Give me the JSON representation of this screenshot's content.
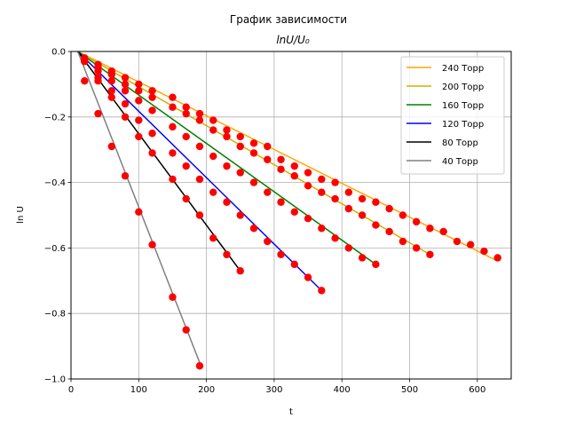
{
  "chart_data": {
    "type": "line",
    "title": "График зависимости",
    "subtitle": "lnU/U₀",
    "xlabel": "t",
    "ylabel": "ln U",
    "xlim": [
      0,
      650
    ],
    "ylim": [
      -1.0,
      0.0
    ],
    "x_ticks": [
      0,
      100,
      200,
      300,
      400,
      500,
      600
    ],
    "y_ticks": [
      0.0,
      -0.2,
      -0.4,
      -0.6,
      -0.8,
      -1.0
    ],
    "x_tick_labels": [
      "0",
      "100",
      "200",
      "300",
      "400",
      "500",
      "600"
    ],
    "y_tick_labels": [
      "0.0",
      "−0.2",
      "−0.4",
      "−0.6",
      "−0.8",
      "−1.0"
    ],
    "grid": true,
    "legend_position": "top-right",
    "marker_color": "#ff0000",
    "series": [
      {
        "name": "240 Торр",
        "color": "#ffa500",
        "fit": [
          [
            10,
            0.0
          ],
          [
            630,
            -0.64
          ]
        ],
        "points": [
          [
            20,
            -0.02
          ],
          [
            40,
            -0.04
          ],
          [
            60,
            -0.06
          ],
          [
            80,
            -0.08
          ],
          [
            100,
            -0.1
          ],
          [
            120,
            -0.12
          ],
          [
            150,
            -0.14
          ],
          [
            170,
            -0.17
          ],
          [
            190,
            -0.19
          ],
          [
            210,
            -0.21
          ],
          [
            230,
            -0.24
          ],
          [
            250,
            -0.26
          ],
          [
            270,
            -0.28
          ],
          [
            290,
            -0.29
          ],
          [
            310,
            -0.33
          ],
          [
            330,
            -0.35
          ],
          [
            350,
            -0.37
          ],
          [
            370,
            -0.39
          ],
          [
            390,
            -0.4
          ],
          [
            410,
            -0.43
          ],
          [
            430,
            -0.45
          ],
          [
            450,
            -0.46
          ],
          [
            470,
            -0.48
          ],
          [
            490,
            -0.5
          ],
          [
            510,
            -0.52
          ],
          [
            530,
            -0.54
          ],
          [
            550,
            -0.55
          ],
          [
            570,
            -0.58
          ],
          [
            590,
            -0.59
          ],
          [
            610,
            -0.61
          ],
          [
            630,
            -0.63
          ]
        ]
      },
      {
        "name": "200 Торр",
        "color": "#d4b000",
        "fit": [
          [
            10,
            0.0
          ],
          [
            530,
            -0.62
          ]
        ],
        "points": [
          [
            20,
            -0.03
          ],
          [
            40,
            -0.05
          ],
          [
            60,
            -0.07
          ],
          [
            80,
            -0.1
          ],
          [
            100,
            -0.12
          ],
          [
            120,
            -0.14
          ],
          [
            150,
            -0.17
          ],
          [
            170,
            -0.19
          ],
          [
            190,
            -0.21
          ],
          [
            210,
            -0.24
          ],
          [
            230,
            -0.26
          ],
          [
            250,
            -0.29
          ],
          [
            270,
            -0.31
          ],
          [
            290,
            -0.33
          ],
          [
            310,
            -0.36
          ],
          [
            330,
            -0.38
          ],
          [
            350,
            -0.41
          ],
          [
            370,
            -0.43
          ],
          [
            390,
            -0.45
          ],
          [
            410,
            -0.48
          ],
          [
            430,
            -0.5
          ],
          [
            450,
            -0.53
          ],
          [
            470,
            -0.55
          ],
          [
            490,
            -0.58
          ],
          [
            510,
            -0.6
          ],
          [
            530,
            -0.62
          ]
        ]
      },
      {
        "name": "160 Торр",
        "color": "#008000",
        "fit": [
          [
            10,
            0.0
          ],
          [
            450,
            -0.65
          ]
        ],
        "points": [
          [
            20,
            -0.03
          ],
          [
            40,
            -0.06
          ],
          [
            60,
            -0.09
          ],
          [
            80,
            -0.12
          ],
          [
            100,
            -0.15
          ],
          [
            120,
            -0.18
          ],
          [
            150,
            -0.23
          ],
          [
            170,
            -0.26
          ],
          [
            190,
            -0.29
          ],
          [
            210,
            -0.32
          ],
          [
            230,
            -0.35
          ],
          [
            250,
            -0.37
          ],
          [
            270,
            -0.4
          ],
          [
            290,
            -0.43
          ],
          [
            310,
            -0.46
          ],
          [
            330,
            -0.49
          ],
          [
            350,
            -0.51
          ],
          [
            370,
            -0.54
          ],
          [
            390,
            -0.57
          ],
          [
            410,
            -0.6
          ],
          [
            430,
            -0.63
          ],
          [
            450,
            -0.65
          ]
        ]
      },
      {
        "name": "120 Торр",
        "color": "#0000ff",
        "fit": [
          [
            10,
            0.0
          ],
          [
            370,
            -0.73
          ]
        ],
        "points": [
          [
            20,
            -0.03
          ],
          [
            40,
            -0.08
          ],
          [
            60,
            -0.12
          ],
          [
            80,
            -0.16
          ],
          [
            100,
            -0.21
          ],
          [
            120,
            -0.25
          ],
          [
            150,
            -0.31
          ],
          [
            170,
            -0.35
          ],
          [
            190,
            -0.39
          ],
          [
            210,
            -0.43
          ],
          [
            230,
            -0.46
          ],
          [
            250,
            -0.5
          ],
          [
            270,
            -0.54
          ],
          [
            290,
            -0.58
          ],
          [
            310,
            -0.62
          ],
          [
            330,
            -0.65
          ],
          [
            350,
            -0.69
          ],
          [
            370,
            -0.73
          ]
        ]
      },
      {
        "name": "80 Торр",
        "color": "#000000",
        "fit": [
          [
            10,
            0.0
          ],
          [
            250,
            -0.67
          ]
        ],
        "points": [
          [
            20,
            -0.03
          ],
          [
            40,
            -0.09
          ],
          [
            60,
            -0.14
          ],
          [
            80,
            -0.2
          ],
          [
            100,
            -0.26
          ],
          [
            120,
            -0.31
          ],
          [
            150,
            -0.39
          ],
          [
            170,
            -0.45
          ],
          [
            190,
            -0.5
          ],
          [
            210,
            -0.57
          ],
          [
            230,
            -0.62
          ],
          [
            250,
            -0.67
          ]
        ]
      },
      {
        "name": "40 Торр",
        "color": "#808080",
        "fit": [
          [
            10,
            0.0
          ],
          [
            190,
            -0.95
          ]
        ],
        "points": [
          [
            20,
            -0.09
          ],
          [
            40,
            -0.19
          ],
          [
            60,
            -0.29
          ],
          [
            80,
            -0.38
          ],
          [
            100,
            -0.49
          ],
          [
            120,
            -0.59
          ],
          [
            150,
            -0.75
          ],
          [
            170,
            -0.85
          ],
          [
            190,
            -0.96
          ]
        ]
      }
    ]
  }
}
